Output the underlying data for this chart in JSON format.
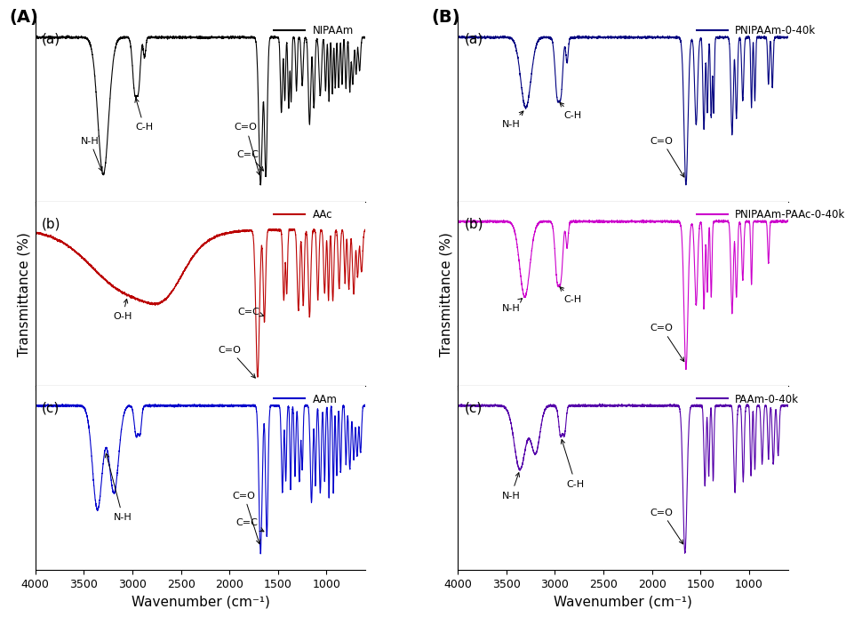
{
  "fig_width": 9.41,
  "fig_height": 7.06,
  "dpi": 100,
  "background_color": "#ffffff",
  "panel_A_label": "(A)",
  "panel_B_label": "(B)",
  "xlabel": "Wavenumber (cm⁻¹)",
  "ylabel": "Transmittance (%)",
  "colors": {
    "NIPAAm": "#000000",
    "AAc": "#bb0000",
    "AAm": "#0000cc",
    "PNIPAAm": "#000080",
    "PNIPAAm_PAAc": "#cc00cc",
    "PAAm": "#5500aa"
  },
  "legend_labels": {
    "NIPAAm": "NIPAAm",
    "AAc": "AAc",
    "AAm": "AAm",
    "PNIPAAm": "PNIPAAm-0-40k",
    "PNIPAAm_PAAc": "PNIPAAm-PAAc-0-40k",
    "PAAm": "PAAm-0-40k"
  }
}
